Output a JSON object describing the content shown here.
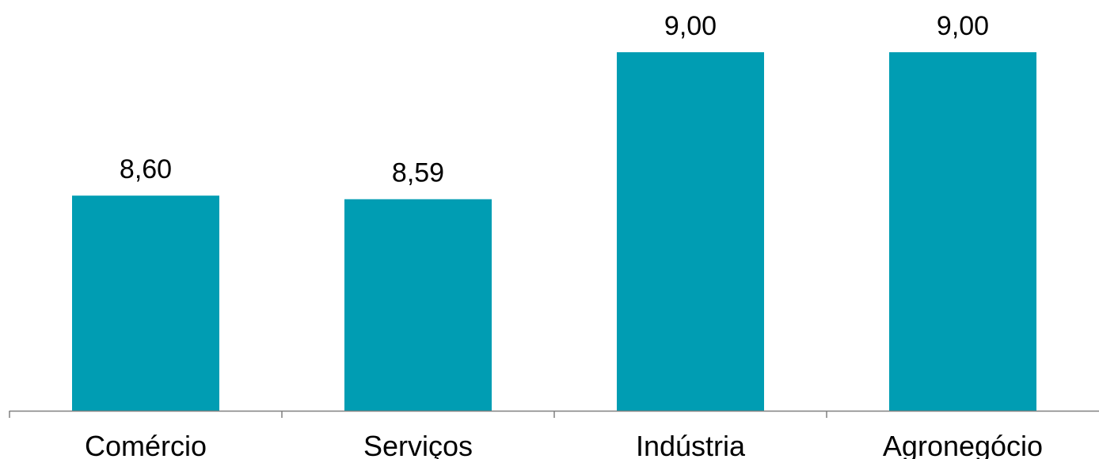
{
  "chart_data": {
    "type": "bar",
    "categories": [
      "Comércio",
      "Serviços",
      "Indústria",
      "Agronegócio"
    ],
    "values": [
      8.6,
      8.59,
      9.0,
      9.0
    ],
    "value_labels": [
      "8,60",
      "8,59",
      "9,00",
      "9,00"
    ],
    "title": "",
    "xlabel": "",
    "ylabel": "",
    "ylim": [
      8.0,
      9.0
    ],
    "grid": false,
    "legend": "none",
    "bar_color": "#009db3",
    "axis_color": "#808080"
  }
}
